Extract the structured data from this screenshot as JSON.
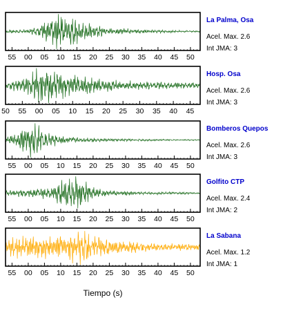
{
  "chart_data": {
    "type": "line",
    "xlabel": "Tiempo (s)",
    "panels": [
      {
        "name": "La Palma, Osa",
        "accel_label": "Acel. Max. 2.6",
        "jma_label": "Int JMA: 3",
        "color": "#1a6b1a",
        "tick_labels": [
          "55",
          "00",
          "05",
          "10",
          "15",
          "20",
          "25",
          "30",
          "35",
          "40",
          "45",
          "50"
        ],
        "t_start": 53,
        "t_end": 113,
        "tick_first": 55,
        "amplitude": [
          [
            53,
            0.08
          ],
          [
            60,
            0.12
          ],
          [
            63,
            0.25
          ],
          [
            65,
            0.55
          ],
          [
            67,
            0.6
          ],
          [
            69,
            0.9
          ],
          [
            71,
            1.0
          ],
          [
            73,
            0.8
          ],
          [
            76,
            0.55
          ],
          [
            80,
            0.35
          ],
          [
            85,
            0.2
          ],
          [
            95,
            0.1
          ],
          [
            113,
            0.04
          ]
        ]
      },
      {
        "name": "Hosp. Osa",
        "accel_label": "Acel. Max. 2.6",
        "jma_label": "Int JMA: 3",
        "color": "#1a6b1a",
        "tick_labels": [
          "50",
          "55",
          "00",
          "05",
          "10",
          "15",
          "20",
          "25",
          "30",
          "35",
          "40",
          "45"
        ],
        "t_start": 50,
        "t_end": 108,
        "tick_first": 50,
        "amplitude": [
          [
            50,
            0.2
          ],
          [
            54,
            0.35
          ],
          [
            57,
            0.55
          ],
          [
            59,
            0.85
          ],
          [
            61,
            1.0
          ],
          [
            64,
            0.9
          ],
          [
            67,
            0.7
          ],
          [
            70,
            0.55
          ],
          [
            74,
            0.5
          ],
          [
            78,
            0.35
          ],
          [
            85,
            0.25
          ],
          [
            95,
            0.2
          ],
          [
            108,
            0.17
          ]
        ]
      },
      {
        "name": "Bomberos Quepos",
        "accel_label": "Acel. Max. 2.6",
        "jma_label": "Int JMA: 3",
        "color": "#1a6b1a",
        "tick_labels": [
          "55",
          "00",
          "05",
          "10",
          "15",
          "20",
          "25",
          "30",
          "35",
          "40",
          "45",
          "50"
        ],
        "t_start": 53,
        "t_end": 113,
        "tick_first": 55,
        "amplitude": [
          [
            53,
            0.12
          ],
          [
            57,
            0.35
          ],
          [
            59,
            0.75
          ],
          [
            61,
            1.0
          ],
          [
            63,
            0.8
          ],
          [
            66,
            0.45
          ],
          [
            70,
            0.25
          ],
          [
            75,
            0.15
          ],
          [
            85,
            0.08
          ],
          [
            113,
            0.03
          ]
        ]
      },
      {
        "name": "Golfito CTP",
        "accel_label": "Acel. Max. 2.4",
        "jma_label": "Int JMA: 2",
        "color": "#1a6b1a",
        "tick_labels": [
          "55",
          "00",
          "05",
          "10",
          "15",
          "20",
          "25",
          "30",
          "35",
          "40",
          "45",
          "50"
        ],
        "t_start": 53,
        "t_end": 113,
        "tick_first": 55,
        "amplitude": [
          [
            53,
            0.15
          ],
          [
            60,
            0.2
          ],
          [
            66,
            0.3
          ],
          [
            69,
            0.55
          ],
          [
            72,
            0.85
          ],
          [
            74,
            1.0
          ],
          [
            77,
            0.7
          ],
          [
            80,
            0.35
          ],
          [
            85,
            0.15
          ],
          [
            95,
            0.08
          ],
          [
            113,
            0.05
          ]
        ]
      },
      {
        "name": "La Sabana",
        "accel_label": "Acel. Max. 1.2",
        "jma_label": "Int JMA: 1",
        "color": "#ffaa00",
        "tick_labels": [
          "55",
          "00",
          "05",
          "10",
          "15",
          "20",
          "25",
          "30",
          "35",
          "40",
          "45",
          "50"
        ],
        "t_start": 53,
        "t_end": 113,
        "tick_first": 55,
        "amplitude": [
          [
            53,
            0.3
          ],
          [
            56,
            0.6
          ],
          [
            60,
            0.7
          ],
          [
            64,
            0.55
          ],
          [
            68,
            0.6
          ],
          [
            72,
            0.85
          ],
          [
            75,
            1.0
          ],
          [
            78,
            0.8
          ],
          [
            82,
            0.6
          ],
          [
            86,
            0.4
          ],
          [
            92,
            0.3
          ],
          [
            100,
            0.2
          ],
          [
            113,
            0.15
          ]
        ]
      }
    ]
  }
}
